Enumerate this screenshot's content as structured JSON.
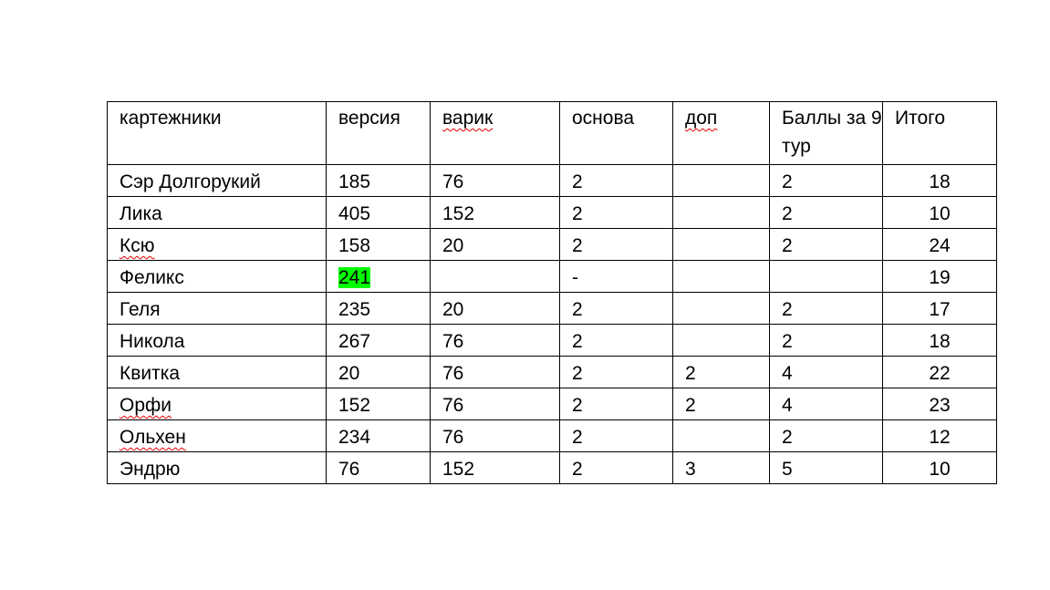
{
  "table": {
    "headers": [
      "картежники",
      "версия",
      "варик",
      "основа",
      "доп",
      "Баллы за 9 тур",
      "Итого"
    ],
    "rows": [
      [
        "Сэр Долгорукий",
        "185",
        "76",
        "2",
        "",
        "2",
        "18"
      ],
      [
        "Лика",
        "405",
        "152",
        "2",
        "",
        "2",
        "10"
      ],
      [
        "Ксю",
        "158",
        "20",
        "2",
        "",
        "2",
        "24"
      ],
      [
        "Феликс",
        "241",
        "",
        "-",
        "",
        "",
        "19"
      ],
      [
        "Геля",
        "235",
        "20",
        "2",
        "",
        "2",
        "17"
      ],
      [
        "Никола",
        "267",
        "76",
        "2",
        "",
        "2",
        "18"
      ],
      [
        "Квитка",
        "20",
        "76",
        "2",
        "2",
        "4",
        "22"
      ],
      [
        "Орфи",
        "152",
        "76",
        "2",
        "2",
        "4",
        "23"
      ],
      [
        "Ольхен",
        "234",
        "76",
        "2",
        "",
        "2",
        "12"
      ],
      [
        "Эндрю",
        "76",
        "152",
        "2",
        "3",
        "5",
        "10"
      ]
    ],
    "highlight": {
      "row": 3,
      "col": 1,
      "color": "#00ff00"
    },
    "spellcheck_underlined": [
      "варик",
      "доп",
      "Ксю",
      "Орфи",
      "Ольхен"
    ]
  }
}
